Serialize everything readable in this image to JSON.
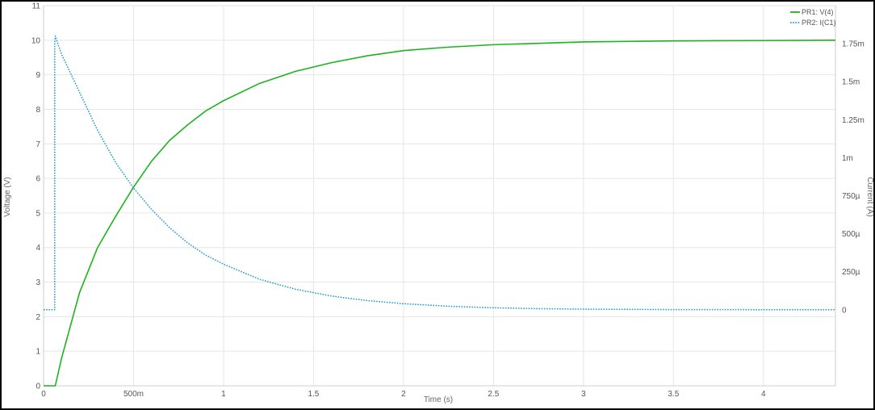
{
  "chart_data": {
    "type": "line",
    "xlabel": "Time (s)",
    "ylabel": "Voltage (V)",
    "y2label": "Current (A)",
    "xlim": [
      0,
      4.4
    ],
    "ylim": [
      0,
      11
    ],
    "y2lim": [
      -0.0005,
      0.002
    ],
    "grid": true,
    "legend_position": "top-right",
    "x_ticks": [
      {
        "value": 0,
        "label": "0"
      },
      {
        "value": 0.5,
        "label": "500m"
      },
      {
        "value": 1,
        "label": "1"
      },
      {
        "value": 1.5,
        "label": "1.5"
      },
      {
        "value": 2,
        "label": "2"
      },
      {
        "value": 2.5,
        "label": "2.5"
      },
      {
        "value": 3,
        "label": "3"
      },
      {
        "value": 3.5,
        "label": "3.5"
      },
      {
        "value": 4,
        "label": "4"
      }
    ],
    "y_ticks": [
      {
        "value": 0,
        "label": "0"
      },
      {
        "value": 1,
        "label": "1"
      },
      {
        "value": 2,
        "label": "2"
      },
      {
        "value": 3,
        "label": "3"
      },
      {
        "value": 4,
        "label": "4"
      },
      {
        "value": 5,
        "label": "5"
      },
      {
        "value": 6,
        "label": "6"
      },
      {
        "value": 7,
        "label": "7"
      },
      {
        "value": 8,
        "label": "8"
      },
      {
        "value": 9,
        "label": "9"
      },
      {
        "value": 10,
        "label": "10"
      },
      {
        "value": 11,
        "label": "11"
      }
    ],
    "y2_ticks": [
      {
        "value": 0,
        "label": "0"
      },
      {
        "value": 0.00025,
        "label": "250µ"
      },
      {
        "value": 0.0005,
        "label": "500µ"
      },
      {
        "value": 0.00075,
        "label": "750µ"
      },
      {
        "value": 0.001,
        "label": "1m"
      },
      {
        "value": 0.00125,
        "label": "1.25m"
      },
      {
        "value": 0.0015,
        "label": "1.5m"
      },
      {
        "value": 0.00175,
        "label": "1.75m"
      }
    ],
    "series": [
      {
        "name": "PR1: V(4)",
        "axis": "left",
        "color": "#1db31d",
        "style": "solid",
        "x": [
          0,
          0.065,
          0.1,
          0.2,
          0.3,
          0.4,
          0.5,
          0.6,
          0.7,
          0.8,
          0.9,
          1.0,
          1.2,
          1.4,
          1.6,
          1.8,
          2.0,
          2.25,
          2.5,
          2.75,
          3.0,
          3.5,
          4.0,
          4.4
        ],
        "values": [
          0,
          0,
          0.8,
          2.7,
          4.0,
          4.9,
          5.75,
          6.5,
          7.1,
          7.55,
          7.95,
          8.25,
          8.75,
          9.1,
          9.35,
          9.55,
          9.7,
          9.8,
          9.87,
          9.91,
          9.95,
          9.98,
          9.99,
          10.0
        ]
      },
      {
        "name": "PR2: I(C1)",
        "axis": "right",
        "color": "#1f9bd1",
        "style": "dotted",
        "x": [
          0,
          0.062,
          0.062,
          0.065,
          0.1,
          0.2,
          0.3,
          0.4,
          0.5,
          0.6,
          0.7,
          0.8,
          0.9,
          1.0,
          1.2,
          1.4,
          1.6,
          1.8,
          2.0,
          2.25,
          2.5,
          2.75,
          3.0,
          3.5,
          4.0,
          4.4
        ],
        "values": [
          0,
          0,
          0.00175,
          0.0018,
          0.00168,
          0.00143,
          0.00118,
          0.00097,
          0.0008,
          0.00066,
          0.00054,
          0.00044,
          0.00036,
          0.0003,
          0.0002,
          0.000135,
          9e-05,
          6e-05,
          4e-05,
          2.3e-05,
          1.3e-05,
          7e-06,
          4e-06,
          1e-06,
          5e-07,
          0
        ]
      }
    ]
  }
}
